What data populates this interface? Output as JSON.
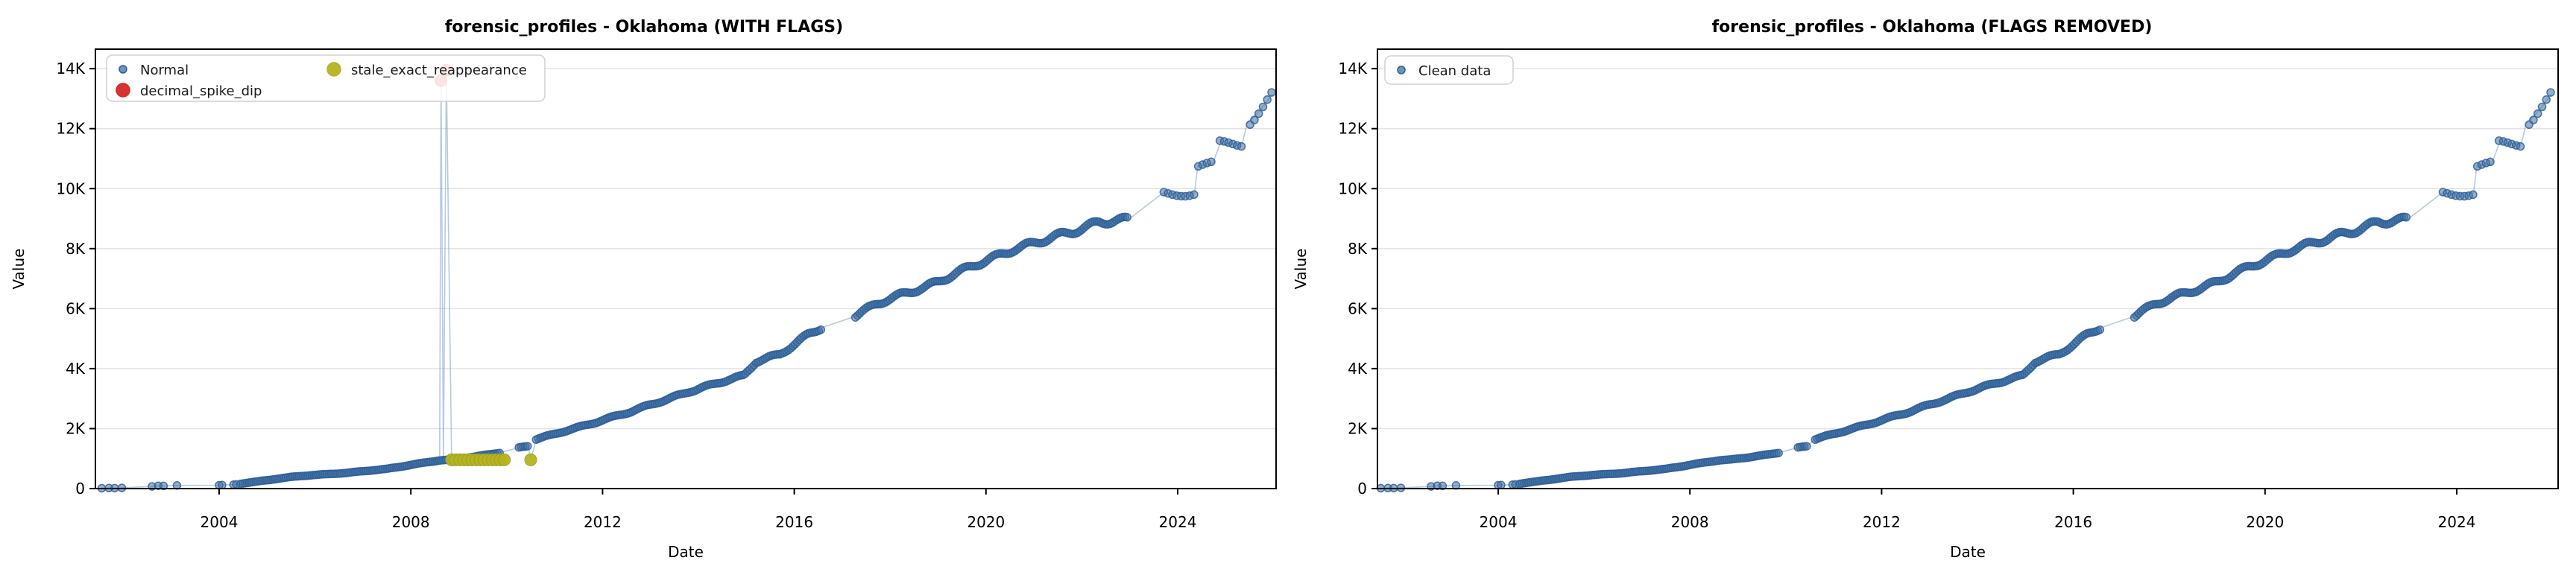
{
  "figure": {
    "background": "#ffffff",
    "left_title": "forensic_profiles - Oklahoma (WITH FLAGS)",
    "right_title": "forensic_profiles - Oklahoma (FLAGS REMOVED)"
  },
  "colors": {
    "normal_fill": "#3e6fa4",
    "normal_edge": "#2e5f97",
    "line": "#7d9cc4",
    "stale_fill": "#b5b321",
    "stale_edge": "#9fa01e",
    "spike_red": "#d62728",
    "grid": "#e3e3e3",
    "spine": "#000000",
    "legend_border": "#d0d0d0",
    "legend_bg": "rgba(255,255,255,0.85)"
  },
  "chart_data": [
    {
      "type": "scatter",
      "title": "forensic_profiles - Oklahoma (WITH FLAGS)",
      "xlabel": "Date",
      "ylabel": "Value",
      "x_ticks": [
        2004,
        2008,
        2012,
        2016,
        2020,
        2024
      ],
      "y_ticks": [
        0,
        2000,
        4000,
        6000,
        8000,
        10000,
        12000,
        14000
      ],
      "y_tick_labels": [
        "0",
        "2K",
        "4K",
        "6K",
        "8K",
        "10K",
        "12K",
        "14K"
      ],
      "xlim": [
        2001.4,
        2026.1
      ],
      "ylim": [
        0,
        14650
      ],
      "grid": "horizontal",
      "legend_position": "upper-left",
      "legend": [
        {
          "label": "Normal",
          "color_key": "normal",
          "marker": "small"
        },
        {
          "label": "decimal_spike_dip",
          "color_key": "spike",
          "marker": "large"
        },
        {
          "label": "stale_exact_reappearance",
          "color_key": "stale",
          "marker": "large"
        }
      ],
      "has_flag_overlays": true
    },
    {
      "type": "scatter",
      "title": "forensic_profiles - Oklahoma (FLAGS REMOVED)",
      "xlabel": "Date",
      "ylabel": "Value",
      "x_ticks": [
        2004,
        2008,
        2012,
        2016,
        2020,
        2024
      ],
      "y_ticks": [
        0,
        2000,
        4000,
        6000,
        8000,
        10000,
        12000,
        14000
      ],
      "y_tick_labels": [
        "0",
        "2K",
        "4K",
        "6K",
        "8K",
        "10K",
        "12K",
        "14K"
      ],
      "xlim": [
        2001.4,
        2026.1
      ],
      "ylim": [
        0,
        14650
      ],
      "grid": "horizontal",
      "legend_position": "upper-left",
      "legend": [
        {
          "label": "Clean data",
          "color_key": "normal",
          "marker": "small"
        }
      ],
      "has_flag_overlays": false
    }
  ],
  "series_shared": {
    "comment": "cumulative-style series, x = decimal year, y = value; dots sampled densely along anchors",
    "isolated_points": [
      [
        2001.55,
        12
      ],
      [
        2001.7,
        18
      ],
      [
        2001.82,
        15
      ],
      [
        2001.97,
        22
      ],
      [
        2002.6,
        72
      ],
      [
        2002.73,
        95
      ],
      [
        2002.84,
        90
      ],
      [
        2003.12,
        105
      ],
      [
        2004.0,
        112
      ],
      [
        2004.06,
        118
      ],
      [
        2004.3,
        132
      ],
      [
        2004.36,
        140
      ]
    ],
    "anchors": [
      [
        2004.45,
        160
      ],
      [
        2004.8,
        240
      ],
      [
        2005.1,
        300
      ],
      [
        2005.5,
        390
      ],
      [
        2006.0,
        455
      ],
      [
        2006.6,
        515
      ],
      [
        2007.0,
        580
      ],
      [
        2007.5,
        655
      ],
      [
        2008.0,
        790
      ],
      [
        2008.6,
        945
      ],
      [
        2008.68,
        950
      ],
      [
        2008.85,
        960
      ],
      [
        2009.1,
        1020
      ],
      [
        2009.5,
        1100
      ],
      [
        2009.85,
        1200
      ],
      [
        2010.25,
        1360
      ],
      [
        2010.45,
        1430
      ],
      [
        2010.62,
        1650
      ],
      [
        2011.0,
        1820
      ],
      [
        2011.4,
        2000
      ],
      [
        2011.8,
        2180
      ],
      [
        2012.2,
        2380
      ],
      [
        2012.6,
        2570
      ],
      [
        2013.0,
        2800
      ],
      [
        2013.4,
        3000
      ],
      [
        2013.8,
        3230
      ],
      [
        2014.2,
        3420
      ],
      [
        2014.6,
        3620
      ],
      [
        2014.95,
        3760
      ],
      [
        2015.2,
        4230
      ],
      [
        2015.7,
        4480
      ],
      [
        2016.0,
        4800
      ],
      [
        2016.3,
        5150
      ],
      [
        2016.55,
        5350
      ],
      [
        2017.25,
        5730
      ],
      [
        2017.7,
        6150
      ],
      [
        2018.2,
        6450
      ],
      [
        2018.7,
        6700
      ],
      [
        2019.0,
        6890
      ],
      [
        2019.4,
        7200
      ],
      [
        2019.8,
        7480
      ],
      [
        2020.2,
        7720
      ],
      [
        2020.6,
        7990
      ],
      [
        2021.0,
        8180
      ],
      [
        2021.4,
        8390
      ],
      [
        2021.8,
        8560
      ],
      [
        2022.1,
        8720
      ],
      [
        2022.35,
        8880
      ],
      [
        2022.97,
        8970
      ],
      [
        2023.68,
        9840
      ],
      [
        2024.35,
        9860
      ],
      [
        2024.42,
        10760
      ],
      [
        2024.72,
        10790
      ],
      [
        2024.88,
        11480
      ],
      [
        2025.35,
        11510
      ],
      [
        2025.45,
        12180
      ],
      [
        2025.6,
        12400
      ],
      [
        2025.75,
        12680
      ],
      [
        2025.85,
        12880
      ],
      [
        2025.98,
        13150
      ]
    ],
    "dot_gaps": [
      [
        2009.86,
        2010.24
      ],
      [
        2010.46,
        2010.61
      ],
      [
        2016.56,
        2017.24
      ],
      [
        2022.98,
        2023.67
      ],
      [
        2024.36,
        2024.41
      ],
      [
        2024.73,
        2024.87
      ],
      [
        2025.36,
        2025.44
      ]
    ],
    "sample_range": [
      2004.45,
      2025.98
    ],
    "sample_step": 0.045,
    "step_region_start": 2023.6,
    "step_region_step": 0.09,
    "decimal_spike_dip_points": [
      [
        2008.63,
        13600
      ],
      [
        2008.74,
        13950
      ]
    ],
    "stale_exact_reappearance": {
      "run_start": 2008.85,
      "run_end": 2009.95,
      "value": 958,
      "count": 14,
      "isolated": [
        [
          2010.5,
          958
        ]
      ]
    }
  }
}
